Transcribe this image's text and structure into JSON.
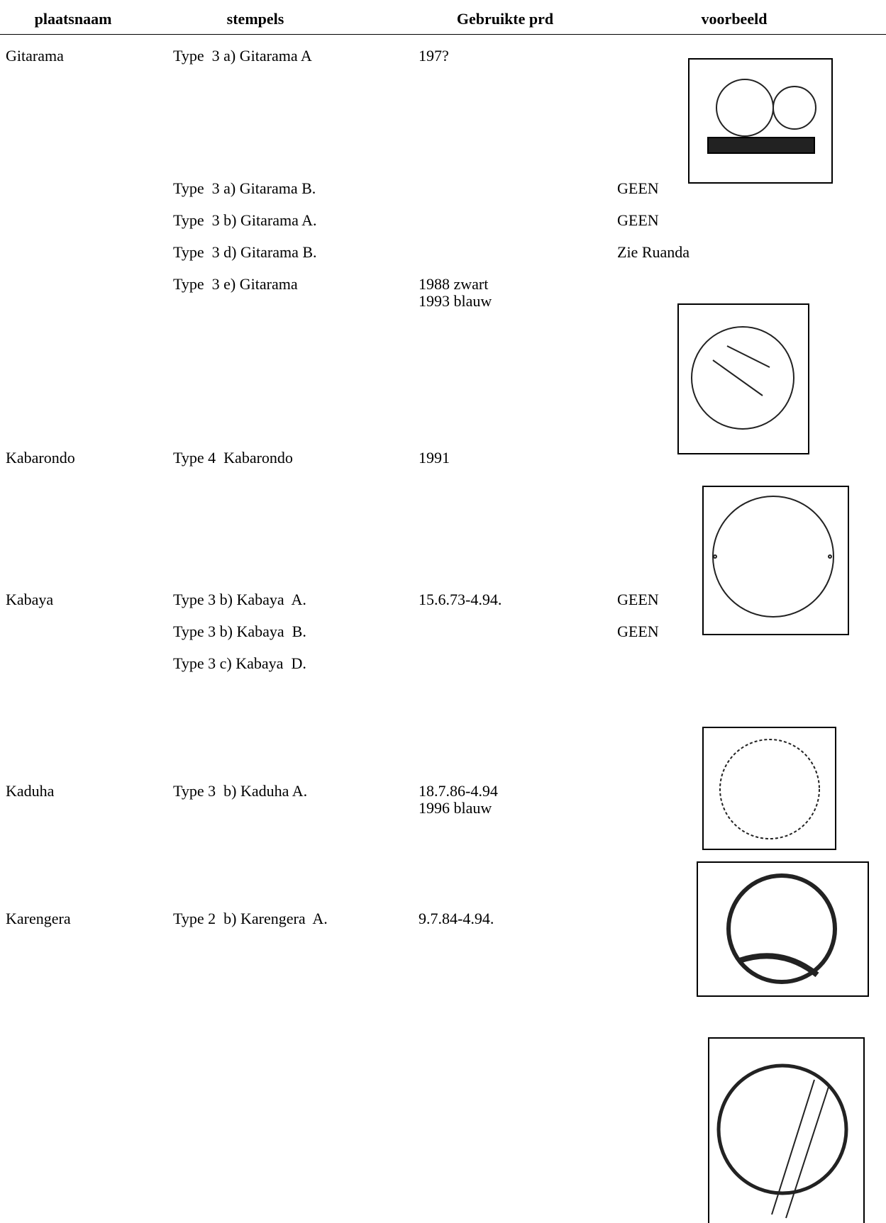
{
  "header": {
    "columns": [
      "plaatsnaam",
      "stempels",
      "Gebruikte prd",
      "voorbeeld"
    ]
  },
  "table": {
    "rows": [
      {
        "place": "Gitarama",
        "stamp": "Type  3 a) Gitarama A",
        "period": [
          "197?"
        ]
      },
      {
        "stamp": "Type  3 a) Gitarama B.",
        "example": "GEEN"
      },
      {
        "stamp": "Type  3 b) Gitarama A.",
        "example": "GEEN"
      },
      {
        "stamp": "Type  3 d) Gitarama B.",
        "example": "Zie Ruanda"
      },
      {
        "stamp": "Type  3 e) Gitarama",
        "period": [
          "1988 zwart",
          "1993 blauw"
        ]
      },
      {
        "place": "Kabarondo",
        "stamp": "Type 4  Kabarondo",
        "period": [
          "1991"
        ]
      },
      {
        "place": "Kabaya",
        "stamp": "Type 3 b) Kabaya  A.",
        "period": [
          "15.6.73-4.94."
        ],
        "example": "GEEN"
      },
      {
        "stamp": "Type 3 b) Kabaya  B.",
        "example": "GEEN"
      },
      {
        "stamp": "Type 3 c) Kabaya  D."
      },
      {
        "place": "Kaduha",
        "stamp": "Type 3  b) Kaduha A.",
        "period": [
          "18.7.86-4.94",
          "1996 blauw"
        ]
      },
      {
        "place": "Karengera",
        "stamp": "Type 2  b) Karengera  A.",
        "period": [
          "9.7.84-4.94."
        ]
      }
    ]
  }
}
